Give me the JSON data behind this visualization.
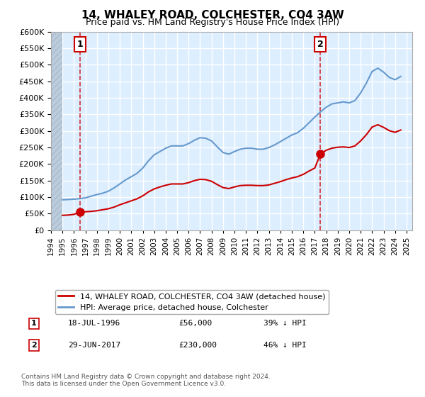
{
  "title": "14, WHALEY ROAD, COLCHESTER, CO4 3AW",
  "subtitle": "Price paid vs. HM Land Registry's House Price Index (HPI)",
  "ylabel_ticks": [
    "£0",
    "£50K",
    "£100K",
    "£150K",
    "£200K",
    "£250K",
    "£300K",
    "£350K",
    "£400K",
    "£450K",
    "£500K",
    "£550K",
    "£600K"
  ],
  "ylim": [
    0,
    600000
  ],
  "xlim_start": 1994.0,
  "xlim_end": 2025.5,
  "hatch_end": 1995.0,
  "sale1_x": 1996.55,
  "sale1_y": 56000,
  "sale2_x": 2017.49,
  "sale2_y": 230000,
  "legend_line1": "14, WHALEY ROAD, COLCHESTER, CO4 3AW (detached house)",
  "legend_line2": "HPI: Average price, detached house, Colchester",
  "annotation1_label": "1",
  "annotation1_date": "18-JUL-1996",
  "annotation1_price": "£56,000",
  "annotation1_hpi": "39% ↓ HPI",
  "annotation2_label": "2",
  "annotation2_date": "29-JUN-2017",
  "annotation2_price": "£230,000",
  "annotation2_hpi": "46% ↓ HPI",
  "footnote": "Contains HM Land Registry data © Crown copyright and database right 2024.\nThis data is licensed under the Open Government Licence v3.0.",
  "line_red_color": "#cc0000",
  "line_blue_color": "#6699cc",
  "bg_color": "#ddeeff",
  "hatch_color": "#bbccdd",
  "grid_color": "#ffffff",
  "hpi_data_x": [
    1995.0,
    1995.5,
    1996.0,
    1996.5,
    1997.0,
    1997.5,
    1998.0,
    1998.5,
    1999.0,
    1999.5,
    2000.0,
    2000.5,
    2001.0,
    2001.5,
    2002.0,
    2002.5,
    2003.0,
    2003.5,
    2004.0,
    2004.5,
    2005.0,
    2005.5,
    2006.0,
    2006.5,
    2007.0,
    2007.5,
    2008.0,
    2008.5,
    2009.0,
    2009.5,
    2010.0,
    2010.5,
    2011.0,
    2011.5,
    2012.0,
    2012.5,
    2013.0,
    2013.5,
    2014.0,
    2014.5,
    2015.0,
    2015.5,
    2016.0,
    2016.5,
    2017.0,
    2017.5,
    2018.0,
    2018.5,
    2019.0,
    2019.5,
    2020.0,
    2020.5,
    2021.0,
    2021.5,
    2022.0,
    2022.5,
    2023.0,
    2023.5,
    2024.0,
    2024.5
  ],
  "hpi_data_y": [
    92000,
    93000,
    94000,
    95500,
    98000,
    103000,
    108000,
    112000,
    118000,
    128000,
    140000,
    152000,
    162000,
    172000,
    188000,
    210000,
    228000,
    238000,
    248000,
    255000,
    255000,
    255000,
    262000,
    272000,
    280000,
    278000,
    270000,
    252000,
    235000,
    230000,
    238000,
    245000,
    248000,
    248000,
    245000,
    245000,
    250000,
    258000,
    268000,
    278000,
    288000,
    295000,
    308000,
    325000,
    342000,
    358000,
    372000,
    382000,
    385000,
    388000,
    385000,
    392000,
    415000,
    445000,
    480000,
    490000,
    478000,
    462000,
    455000,
    465000
  ],
  "red_data_x": [
    1995.0,
    1995.5,
    1996.0,
    1996.55,
    1997.0,
    1997.5,
    1998.0,
    1998.5,
    1999.0,
    1999.5,
    2000.0,
    2000.5,
    2001.0,
    2001.5,
    2002.0,
    2002.5,
    2003.0,
    2003.5,
    2004.0,
    2004.5,
    2005.0,
    2005.5,
    2006.0,
    2006.5,
    2007.0,
    2007.5,
    2008.0,
    2008.5,
    2009.0,
    2009.5,
    2010.0,
    2010.5,
    2011.0,
    2011.5,
    2012.0,
    2012.5,
    2013.0,
    2013.5,
    2014.0,
    2014.5,
    2015.0,
    2015.5,
    2016.0,
    2016.5,
    2017.0,
    2017.49,
    2018.0,
    2018.5,
    2019.0,
    2019.5,
    2020.0,
    2020.5,
    2021.0,
    2021.5,
    2022.0,
    2022.5,
    2023.0,
    2023.5,
    2024.0,
    2024.5
  ],
  "red_data_y": [
    45000,
    46000,
    48000,
    56000,
    56000,
    57000,
    59000,
    62000,
    65000,
    70000,
    77000,
    83000,
    89000,
    95000,
    104000,
    116000,
    125000,
    131000,
    136000,
    140000,
    140000,
    140000,
    144000,
    150000,
    154000,
    153000,
    148000,
    138000,
    129000,
    126000,
    131000,
    135000,
    136000,
    136000,
    135000,
    135000,
    137000,
    142000,
    147000,
    153000,
    158000,
    162000,
    169000,
    179000,
    188000,
    230000,
    242000,
    248000,
    251000,
    252000,
    250000,
    255000,
    270000,
    289000,
    312000,
    319000,
    311000,
    301000,
    296000,
    303000
  ]
}
